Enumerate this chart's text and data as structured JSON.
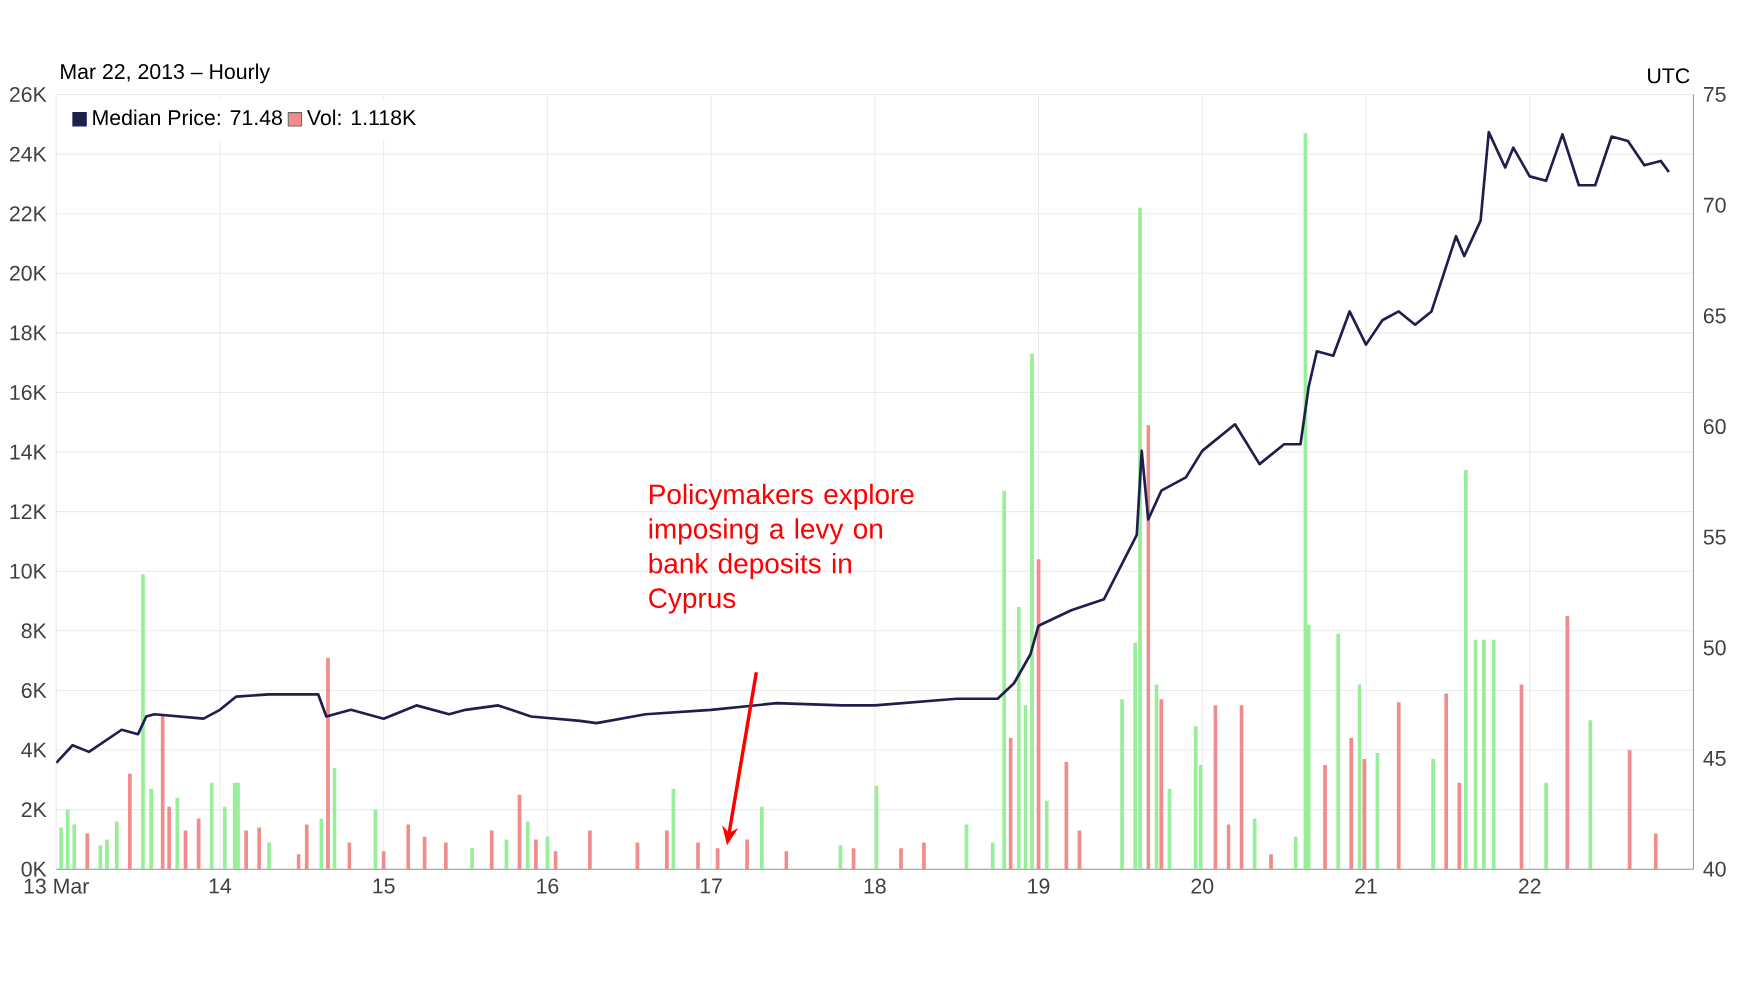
{
  "chart_data": {
    "type": "bar",
    "subtitle": "Mar 22, 2013 – Hourly",
    "annotations": [
      "UTC",
      "Policymakers explore imposing a levy on bank deposits in Cyprus"
    ],
    "xlim": [
      13,
      23
    ],
    "xticks": [
      {
        "value": 13,
        "label": "13 Mar"
      },
      14,
      15,
      16,
      17,
      18,
      19,
      20,
      21,
      22
    ],
    "ylim": [
      0,
      26000
    ],
    "yticks": [
      {
        "value": 0,
        "label": "0K"
      },
      {
        "value": 2000,
        "label": "2K"
      },
      {
        "value": 4000,
        "label": "4K"
      },
      {
        "value": 6000,
        "label": "6K"
      },
      {
        "value": 8000,
        "label": "8K"
      },
      {
        "value": 10000,
        "label": "10K"
      },
      {
        "value": 12000,
        "label": "12K"
      },
      {
        "value": 14000,
        "label": "14K"
      },
      {
        "value": 16000,
        "label": "16K"
      },
      {
        "value": 18000,
        "label": "18K"
      },
      {
        "value": 20000,
        "label": "20K"
      },
      {
        "value": 22000,
        "label": "22K"
      },
      {
        "value": 24000,
        "label": "24K"
      },
      {
        "value": 26000,
        "label": "26K"
      }
    ],
    "y2lim": [
      40,
      75
    ],
    "y2ticks": [
      40,
      45,
      50,
      55,
      60,
      65,
      70,
      75
    ],
    "grid": true,
    "legend": "top left",
    "series": [
      {
        "name": "Median Price: 71.48",
        "type": "line",
        "axis": "y2",
        "color": "#1f1f4d",
        "x": [
          13.0,
          13.1,
          13.2,
          13.4,
          13.5,
          13.55,
          13.6,
          13.9,
          14.0,
          14.1,
          14.3,
          14.6,
          14.65,
          14.8,
          15.0,
          15.2,
          15.4,
          15.5,
          15.7,
          15.9,
          16.2,
          16.3,
          16.6,
          17.0,
          17.4,
          17.8,
          18.0,
          18.5,
          18.75,
          18.85,
          18.95,
          19.0,
          19.2,
          19.4,
          19.6,
          19.63,
          19.67,
          19.75,
          19.9,
          20.0,
          20.2,
          20.35,
          20.5,
          20.6,
          20.65,
          20.7,
          20.8,
          20.9,
          21.0,
          21.1,
          21.2,
          21.3,
          21.4,
          21.55,
          21.6,
          21.7,
          21.75,
          21.85,
          21.9,
          22.0,
          22.1,
          22.2,
          22.3,
          22.4,
          22.5,
          22.6,
          22.7,
          22.8,
          22.85
        ],
        "values": [
          44.8,
          45.6,
          45.3,
          46.3,
          46.1,
          46.9,
          47.0,
          46.8,
          47.2,
          47.8,
          47.9,
          47.9,
          46.9,
          47.2,
          46.8,
          47.4,
          47.0,
          47.2,
          47.4,
          46.9,
          46.7,
          46.6,
          47.0,
          47.2,
          47.5,
          47.4,
          47.4,
          47.7,
          47.7,
          48.4,
          49.7,
          51.0,
          51.7,
          52.2,
          55.1,
          58.9,
          55.8,
          57.1,
          57.7,
          58.9,
          60.1,
          58.3,
          59.2,
          59.2,
          61.8,
          63.4,
          63.2,
          65.2,
          63.7,
          64.8,
          65.2,
          64.6,
          65.2,
          68.6,
          67.7,
          69.3,
          73.3,
          71.7,
          72.6,
          71.3,
          71.1,
          73.2,
          70.9,
          70.9,
          73.1,
          72.9,
          71.8,
          72.0,
          71.5
        ]
      },
      {
        "name": "Vol: 1.118K",
        "color": "#f08c8c",
        "x": [
          13.03,
          13.07,
          13.11,
          13.19,
          13.27,
          13.31,
          13.37,
          13.45,
          13.53,
          13.58,
          13.65,
          13.69,
          13.74,
          13.79,
          13.87,
          13.95,
          14.03,
          14.09,
          14.11,
          14.16,
          14.24,
          14.3,
          14.48,
          14.53,
          14.62,
          14.66,
          14.7,
          14.79,
          14.95,
          15.0,
          15.15,
          15.25,
          15.38,
          15.54,
          15.66,
          15.75,
          15.83,
          15.88,
          15.93,
          16.0,
          16.05,
          16.26,
          16.55,
          16.73,
          16.77,
          16.92,
          17.04,
          17.22,
          17.31,
          17.46,
          17.79,
          17.87,
          18.01,
          18.16,
          18.3,
          18.56,
          18.72,
          18.79,
          18.83,
          18.88,
          18.92,
          18.96,
          19.0,
          19.05,
          19.17,
          19.25,
          19.51,
          19.59,
          19.62,
          19.67,
          19.72,
          19.75,
          19.8,
          19.96,
          19.99,
          20.08,
          20.16,
          20.24,
          20.32,
          20.42,
          20.57,
          20.63,
          20.65,
          20.75,
          20.83,
          20.91,
          20.96,
          20.99,
          21.07,
          21.2,
          21.41,
          21.49,
          21.57,
          21.61,
          21.67,
          21.72,
          21.78,
          21.95,
          22.1,
          22.23,
          22.37,
          22.61,
          22.77
        ],
        "values": [
          1400,
          2000,
          1500,
          1200,
          800,
          1000,
          1600,
          3200,
          9900,
          2700,
          5200,
          2100,
          2400,
          1300,
          1700,
          2900,
          2100,
          2900,
          2900,
          1300,
          1400,
          900,
          500,
          1500,
          1700,
          7100,
          3400,
          900,
          2000,
          600,
          1500,
          1100,
          900,
          700,
          1300,
          1000,
          2500,
          1600,
          1000,
          1100,
          600,
          1300,
          900,
          1300,
          2700,
          900,
          700,
          1000,
          2100,
          600,
          800,
          700,
          2800,
          700,
          900,
          1500,
          900,
          12700,
          4400,
          8800,
          5500,
          17300,
          10400,
          2300,
          3600,
          1300,
          5700,
          7600,
          22200,
          14900,
          6200,
          5700,
          2700,
          4800,
          3500,
          5500,
          1500,
          5500,
          1700,
          500,
          1100,
          24700,
          8200,
          3500,
          7900,
          4400,
          6200,
          3700,
          3900,
          5600,
          3700,
          5900,
          2900,
          13400,
          7700,
          7700,
          7700,
          6200,
          2900,
          8500,
          5000,
          4000,
          1200
        ],
        "colors": [
          "#99ee99",
          "#99ee99",
          "#99ee99",
          "#f08c8c",
          "#99ee99",
          "#99ee99",
          "#99ee99",
          "#f08c8c",
          "#99ee99",
          "#99ee99",
          "#f08c8c",
          "#f08c8c",
          "#99ee99",
          "#f08c8c",
          "#f08c8c",
          "#99ee99",
          "#99ee99",
          "#99ee99",
          "#99ee99",
          "#f08c8c",
          "#f08c8c",
          "#99ee99",
          "#f08c8c",
          "#f08c8c",
          "#99ee99",
          "#f08c8c",
          "#99ee99",
          "#f08c8c",
          "#99ee99",
          "#f08c8c",
          "#f08c8c",
          "#f08c8c",
          "#f08c8c",
          "#99ee99",
          "#f08c8c",
          "#99ee99",
          "#f08c8c",
          "#99ee99",
          "#f08c8c",
          "#99ee99",
          "#f08c8c",
          "#f08c8c",
          "#f08c8c",
          "#f08c8c",
          "#99ee99",
          "#f08c8c",
          "#f08c8c",
          "#f08c8c",
          "#99ee99",
          "#f08c8c",
          "#99ee99",
          "#f08c8c",
          "#99ee99",
          "#f08c8c",
          "#f08c8c",
          "#99ee99",
          "#99ee99",
          "#99ee99",
          "#f08c8c",
          "#99ee99",
          "#99ee99",
          "#99ee99",
          "#f08c8c",
          "#99ee99",
          "#f08c8c",
          "#f08c8c",
          "#99ee99",
          "#99ee99",
          "#99ee99",
          "#f08c8c",
          "#99ee99",
          "#f08c8c",
          "#99ee99",
          "#99ee99",
          "#99ee99",
          "#f08c8c",
          "#f08c8c",
          "#f08c8c",
          "#99ee99",
          "#f08c8c",
          "#99ee99",
          "#99ee99",
          "#99ee99",
          "#f08c8c",
          "#99ee99",
          "#f08c8c",
          "#99ee99",
          "#f08c8c",
          "#99ee99",
          "#f08c8c",
          "#99ee99",
          "#f08c8c",
          "#f08c8c",
          "#99ee99",
          "#99ee99",
          "#99ee99",
          "#99ee99",
          "#f08c8c",
          "#99ee99",
          "#f08c8c",
          "#99ee99",
          "#f08c8c",
          "#f08c8c"
        ]
      }
    ]
  }
}
